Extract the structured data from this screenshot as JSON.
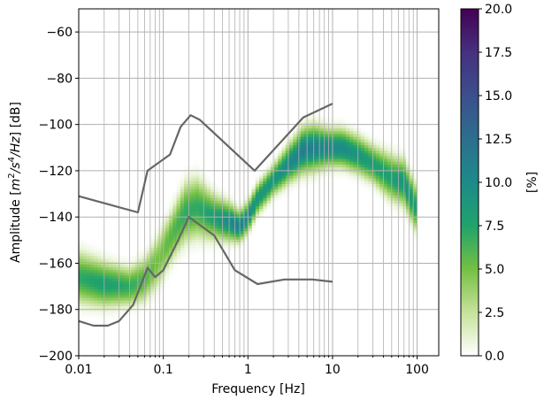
{
  "chart_data": {
    "type": "heatmap",
    "title": "",
    "xlabel": "Frequency [Hz]",
    "ylabel": "Amplitude [m²/s⁴/Hz] [dB]",
    "xscale": "log",
    "xlim": [
      0.01,
      180
    ],
    "ylim": [
      -200,
      -50
    ],
    "x_ticks": [
      0.01,
      0.1,
      1,
      10,
      100
    ],
    "x_tick_labels": [
      "0.01",
      "0.1",
      "1",
      "10",
      "100"
    ],
    "y_ticks": [
      -60,
      -80,
      -100,
      -120,
      -140,
      -160,
      -180,
      -200
    ],
    "y_tick_labels": [
      "−60",
      "−80",
      "−100",
      "−120",
      "−140",
      "−160",
      "−180",
      "−200"
    ],
    "grid": true,
    "colorbar": {
      "label": "[%]",
      "range": [
        0,
        20
      ],
      "ticks": [
        0,
        2.5,
        5,
        7.5,
        10,
        12.5,
        15,
        17.5,
        20
      ],
      "tick_labels": [
        "0.0",
        "2.5",
        "5.0",
        "7.5",
        "10.0",
        "12.5",
        "15.0",
        "17.5",
        "20.0"
      ],
      "colormap": "viridis-white",
      "colors": [
        "#ffffff",
        "#c6e29a",
        "#74c043",
        "#20a36b",
        "#1e8a8a",
        "#2c6f8e",
        "#3b4f8c",
        "#46307f",
        "#440154"
      ]
    },
    "density_ridge": {
      "x": [
        0.01,
        0.02,
        0.04,
        0.06,
        0.09,
        0.13,
        0.18,
        0.25,
        0.4,
        0.6,
        0.8,
        1.0,
        1.3,
        2.0,
        3.0,
        4.5,
        6.0,
        9.0,
        13,
        20,
        30,
        50,
        70,
        100
      ],
      "y": [
        -166,
        -169,
        -170,
        -167,
        -158,
        -147,
        -138,
        -136,
        -140,
        -142,
        -144,
        -140,
        -132,
        -124,
        -117,
        -111,
        -110,
        -110,
        -110,
        -113,
        -117,
        -123,
        -125,
        -137
      ],
      "peak_percent": [
        7,
        8,
        7,
        6,
        5,
        6,
        7,
        7,
        8,
        10,
        11,
        10,
        9,
        9,
        10,
        11,
        11,
        10,
        10,
        9,
        8,
        8,
        9,
        8
      ],
      "spread_db": [
        7,
        6,
        5,
        6,
        7,
        7,
        8,
        8,
        6,
        5,
        4,
        4,
        4,
        4,
        5,
        6,
        6,
        5,
        5,
        5,
        5,
        6,
        6,
        6
      ]
    },
    "series": [
      {
        "x": [
          0.01,
          0.05,
          0.065,
          0.12,
          0.16,
          0.21,
          0.27,
          1.2,
          4.5,
          10
        ],
        "y": [
          -131,
          -138,
          -120,
          -113,
          -101,
          -96,
          -98,
          -120,
          -97,
          -91
        ]
      },
      {
        "x": [
          0.01,
          0.015,
          0.022,
          0.03,
          0.044,
          0.065,
          0.08,
          0.1,
          0.15,
          0.2,
          0.4,
          0.7,
          1.3,
          2.7,
          5.8,
          10
        ],
        "y": [
          -185,
          -187,
          -187,
          -185,
          -178,
          -162,
          -166,
          -163,
          -150,
          -140,
          -148,
          -163,
          -169,
          -167,
          -167,
          -168
        ]
      }
    ]
  }
}
